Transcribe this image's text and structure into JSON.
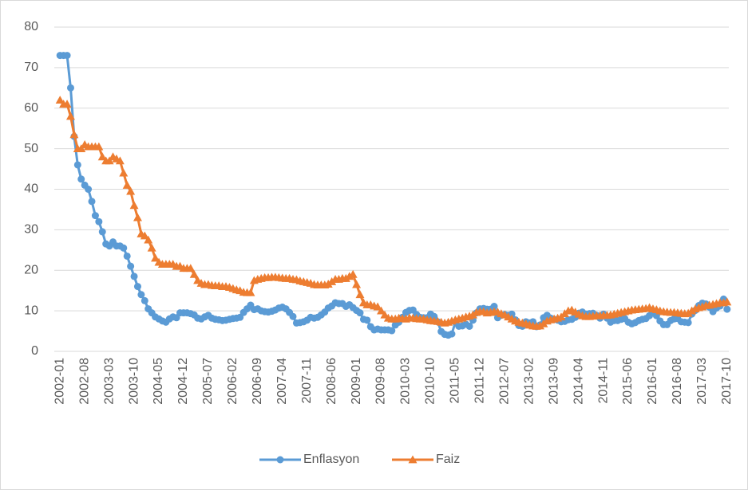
{
  "chart_data": {
    "type": "line",
    "categories": [
      "2002-01",
      null,
      null,
      null,
      null,
      null,
      null,
      "2002-08",
      null,
      null,
      null,
      null,
      null,
      null,
      "2003-03",
      null,
      null,
      null,
      null,
      null,
      null,
      "2003-10",
      null,
      null,
      null,
      null,
      null,
      null,
      "2004-05",
      null,
      null,
      null,
      null,
      null,
      null,
      "2004-12",
      null,
      null,
      null,
      null,
      null,
      null,
      "2005-07",
      null,
      null,
      null,
      null,
      null,
      null,
      "2006-02",
      null,
      null,
      null,
      null,
      null,
      null,
      "2006-09",
      null,
      null,
      null,
      null,
      null,
      null,
      "2007-04",
      null,
      null,
      null,
      null,
      null,
      null,
      "2007-11",
      null,
      null,
      null,
      null,
      null,
      null,
      "2008-06",
      null,
      null,
      null,
      null,
      null,
      null,
      "2009-01",
      null,
      null,
      null,
      null,
      null,
      null,
      "2009-08",
      null,
      null,
      null,
      null,
      null,
      null,
      "2010-03",
      null,
      null,
      null,
      null,
      null,
      null,
      "2010-10",
      null,
      null,
      null,
      null,
      null,
      null,
      "2011-05",
      null,
      null,
      null,
      null,
      null,
      null,
      "2011-12",
      null,
      null,
      null,
      null,
      null,
      null,
      "2012-07",
      null,
      null,
      null,
      null,
      null,
      null,
      "2013-02",
      null,
      null,
      null,
      null,
      null,
      null,
      "2013-09",
      null,
      null,
      null,
      null,
      null,
      null,
      "2014-04",
      null,
      null,
      null,
      null,
      null,
      null,
      "2014-11",
      null,
      null,
      null,
      null,
      null,
      null,
      "2015-06",
      null,
      null,
      null,
      null,
      null,
      null,
      "2016-01",
      null,
      null,
      null,
      null,
      null,
      null,
      "2016-08",
      null,
      null,
      null,
      null,
      null,
      null,
      "2017-03",
      null,
      null,
      null,
      null,
      null,
      null,
      "2017-10"
    ],
    "series": [
      {
        "name": "Enflasyon",
        "color": "#5b9bd5",
        "marker": "circle",
        "values": [
          73,
          73,
          73,
          65,
          53,
          46,
          42.5,
          41,
          40,
          37,
          33.5,
          32,
          29.5,
          26.5,
          26,
          27,
          26,
          26,
          25.5,
          23.5,
          21,
          18.5,
          16,
          14,
          12.5,
          10.5,
          9.5,
          8.5,
          8,
          7.5,
          7.2,
          8,
          8.5,
          8.3,
          9.5,
          9.5,
          9.5,
          9.3,
          9,
          8.2,
          8,
          8.5,
          8.9,
          8.2,
          7.9,
          7.8,
          7.6,
          7.7,
          7.9,
          8.1,
          8.2,
          8.4,
          9.6,
          10.5,
          11.4,
          10.3,
          10.5,
          10,
          9.8,
          9.7,
          9.9,
          10.2,
          10.7,
          10.9,
          10.5,
          9.6,
          8.6,
          7,
          7.1,
          7.3,
          7.7,
          8.4,
          8.2,
          8.4,
          9,
          9.7,
          10.7,
          11.2,
          12,
          11.8,
          11.8,
          11.1,
          11.5,
          10.8,
          10.1,
          9.5,
          7.9,
          7.7,
          6.1,
          5.3,
          5.5,
          5.3,
          5.3,
          5.3,
          5.1,
          6.5,
          7.2,
          8.4,
          9.6,
          10.1,
          10.2,
          9.1,
          8.4,
          8.3,
          8.3,
          9.2,
          8.6,
          7.3,
          4.9,
          4.2,
          4,
          4.3,
          7.2,
          6.2,
          6.3,
          6.7,
          6.2,
          7.7,
          9.5,
          10.5,
          10.6,
          10.4,
          10.4,
          11.1,
          8.3,
          8.9,
          9.1,
          8.9,
          9.2,
          7.8,
          6.4,
          6.2,
          7.3,
          7,
          7.3,
          6.1,
          6.5,
          8.3,
          8.9,
          8.2,
          7.9,
          7.7,
          7.3,
          7.4,
          7.8,
          7.9,
          8.4,
          9.4,
          9.7,
          9.2,
          9.3,
          9.4,
          8.9,
          8.2,
          9.2,
          8.2,
          7.2,
          7.6,
          7.6,
          7.9,
          8.1,
          7.2,
          6.8,
          7.1,
          7.6,
          7.9,
          8.1,
          8.8,
          9.6,
          8.8,
          7.5,
          6.6,
          6.6,
          7.6,
          8,
          8.1,
          7.3,
          7.2,
          7.1,
          9.2,
          10.1,
          11.3,
          11.9,
          11.7,
          10.9,
          9.8,
          10.7,
          11.2,
          12.9,
          10.4
        ]
      },
      {
        "name": "Faiz",
        "color": "#ed7d31",
        "marker": "triangle",
        "values": [
          62,
          61,
          61,
          58,
          53.5,
          50,
          50,
          51,
          50.5,
          50.5,
          50.5,
          50.5,
          48,
          47,
          47,
          48,
          47.5,
          47,
          44,
          41,
          39.5,
          36,
          33,
          29,
          28.5,
          27.5,
          25.5,
          23,
          22,
          21.5,
          21.5,
          21.5,
          21.5,
          21,
          21,
          20.5,
          20.5,
          20.5,
          19,
          17.5,
          16.8,
          16.5,
          16.5,
          16.3,
          16.2,
          16.2,
          16,
          16,
          15.8,
          15.5,
          15.2,
          15,
          14.6,
          14.5,
          14.5,
          17.5,
          17.8,
          18,
          18.2,
          18.2,
          18.3,
          18.3,
          18.2,
          18.1,
          18,
          18,
          17.8,
          17.7,
          17.4,
          17.2,
          17,
          16.8,
          16.5,
          16.4,
          16.4,
          16.4,
          16.6,
          17.2,
          17.8,
          17.8,
          18,
          18,
          18.5,
          19,
          16.5,
          14,
          12,
          11.5,
          11.5,
          11.2,
          11,
          10,
          9,
          8.2,
          8,
          8,
          8.2,
          8.1,
          8,
          8.3,
          8.2,
          8.1,
          8,
          8,
          7.8,
          7.6,
          7.5,
          7.4,
          7.2,
          7,
          7.2,
          7.5,
          7.8,
          8,
          8.2,
          8.5,
          8.7,
          9,
          9.6,
          9.8,
          9.8,
          9.5,
          9.6,
          9.8,
          9.7,
          9.3,
          9,
          8.5,
          8,
          7.5,
          7.2,
          7,
          6.8,
          6.5,
          6.3,
          6.2,
          6.3,
          6.8,
          7.5,
          7.8,
          8,
          8.2,
          8.5,
          9.3,
          10,
          10.2,
          9.7,
          9.2,
          8.8,
          8.6,
          8.6,
          8.7,
          8.8,
          8.8,
          8.9,
          8.9,
          9,
          9.2,
          9.4,
          9.6,
          9.8,
          10,
          10.2,
          10.3,
          10.4,
          10.5,
          10.6,
          10.8,
          10.5,
          10.3,
          10,
          9.8,
          9.7,
          9.6,
          9.6,
          9.5,
          9.4,
          9.3,
          9.4,
          10,
          10.5,
          10.8,
          11,
          11.3,
          11.4,
          11.6,
          11.8,
          12,
          12,
          12.2
        ]
      }
    ],
    "ylim": [
      0,
      80
    ],
    "yticks": [
      0,
      10,
      20,
      30,
      40,
      50,
      60,
      70,
      80
    ],
    "grid": true,
    "legend": "bottom"
  }
}
